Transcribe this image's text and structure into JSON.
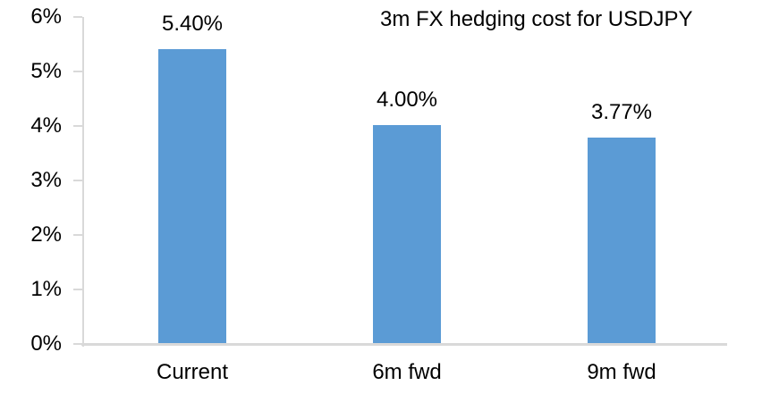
{
  "chart_data": {
    "type": "bar",
    "title": "3m FX hedging cost for USDJPY",
    "categories": [
      "Current",
      "6m fwd",
      "9m fwd"
    ],
    "values": [
      5.4,
      4.0,
      3.77
    ],
    "value_labels": [
      "5.40%",
      "4.00%",
      "3.77%"
    ],
    "xlabel": "",
    "ylabel": "",
    "ylim": [
      0,
      6
    ],
    "ytick_values": [
      0,
      1,
      2,
      3,
      4,
      5,
      6
    ],
    "ytick_labels": [
      "0%",
      "1%",
      "2%",
      "3%",
      "4%",
      "5%",
      "6%"
    ],
    "legend_position": "none",
    "grid": false,
    "bar_color": "#5B9BD5",
    "axis_color": "#D9D9D9",
    "text_color": "#000000"
  }
}
